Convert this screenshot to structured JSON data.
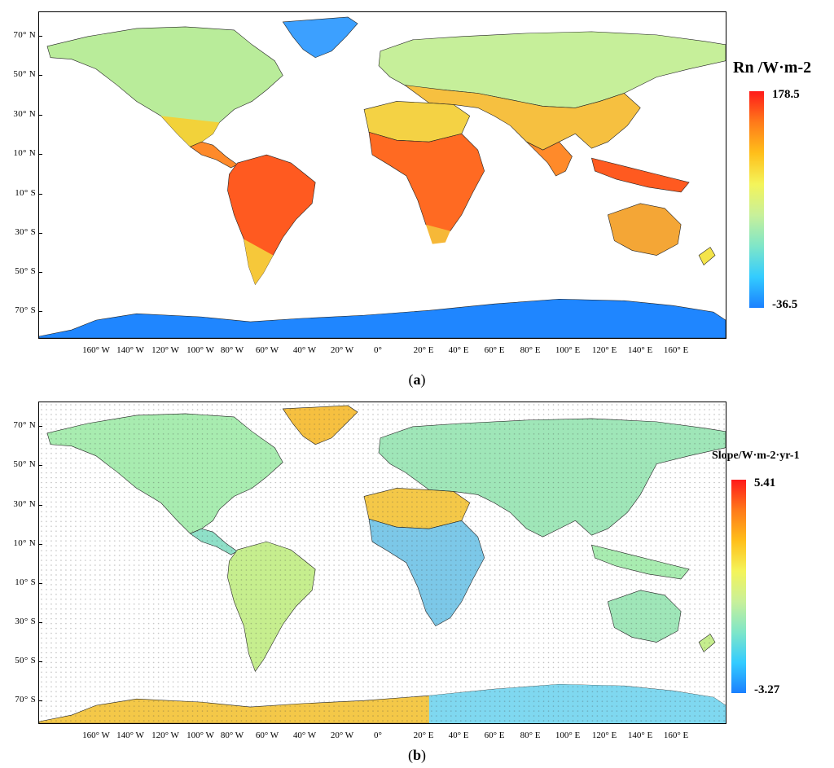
{
  "panels": [
    {
      "id": "a",
      "label_open": "(",
      "label_letter": "a",
      "label_close": ")",
      "legend_title": "Rn /W·m-2",
      "legend_max": "178.5",
      "legend_min": "-36.5",
      "colormap": [
        "#ff1a1a",
        "#ff7a1a",
        "#ffbf1a",
        "#f4f45a",
        "#c8f09a",
        "#7fe6c8",
        "#33ccff",
        "#1a80ff"
      ],
      "stippled": false
    },
    {
      "id": "b",
      "label_open": "(",
      "label_letter": "b",
      "label_close": ")",
      "legend_title": "Slope/W·m-2·yr-1",
      "legend_max": "5.41",
      "legend_min": "-3.27",
      "colormap": [
        "#ff1a1a",
        "#ff7a1a",
        "#ffbf1a",
        "#f4f45a",
        "#c8f09a",
        "#7fe6c8",
        "#33ccff",
        "#1a80ff"
      ],
      "stippled": true
    }
  ],
  "axes": {
    "y_ticks": [
      "70° N",
      "50° N",
      "30° N",
      "10° N",
      "10° S",
      "30° S",
      "50° S",
      "70° S"
    ],
    "x_ticks": [
      "160° W",
      "140° W",
      "120° W",
      "100° W",
      "80° W",
      "60° W",
      "40° W",
      "20° W",
      "0°",
      "20° E",
      "40° E",
      "60° E",
      "80° E",
      "100° E",
      "120° E",
      "140° E",
      "160° E"
    ]
  }
}
